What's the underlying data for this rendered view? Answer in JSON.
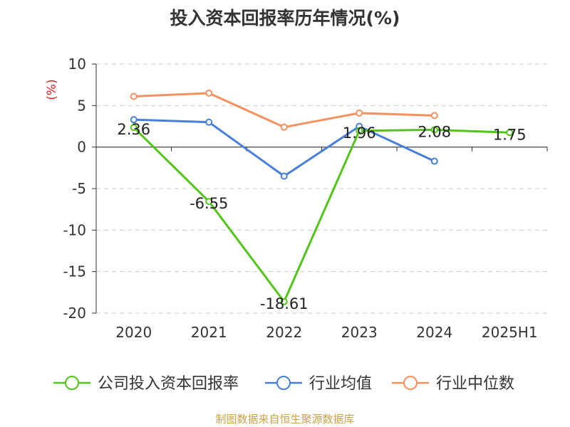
{
  "title": "投入资本回报率历年情况(%)",
  "source": "制图数据来自恒生聚源数据库",
  "chart_data": {
    "type": "line",
    "ylabel": "(%)",
    "ylim": [
      -20,
      10
    ],
    "yticks": [
      10,
      5,
      0,
      -5,
      -10,
      -15,
      -20
    ],
    "categories": [
      "2020",
      "2021",
      "2022",
      "2023",
      "2024",
      "2025H1"
    ],
    "grid": true,
    "legend_position": "bottom",
    "series": [
      {
        "name": "公司投入资本回报率",
        "color": "#52c41a",
        "values": [
          2.36,
          -6.55,
          -18.61,
          1.96,
          2.08,
          1.75
        ],
        "labels": [
          "2.36",
          "-6.55",
          "-18.61",
          "1.96",
          "2.08",
          "1.75"
        ]
      },
      {
        "name": "行业均值",
        "color": "#4a7fd9",
        "values": [
          3.3,
          3.0,
          -3.5,
          2.5,
          -1.7,
          null
        ]
      },
      {
        "name": "行业中位数",
        "color": "#f59161",
        "values": [
          6.1,
          6.5,
          2.4,
          4.1,
          3.8,
          null
        ]
      }
    ]
  }
}
